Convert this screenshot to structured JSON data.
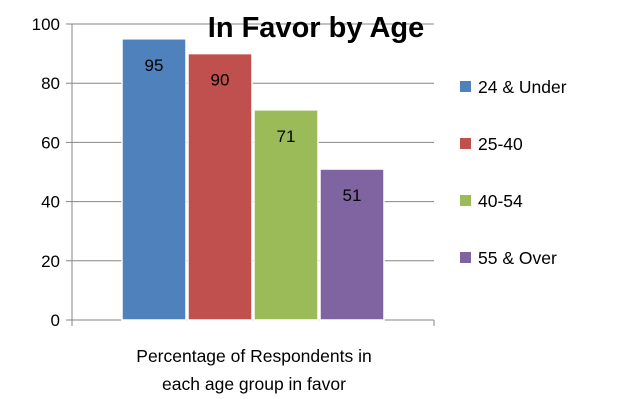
{
  "chart_data": {
    "type": "bar",
    "title": "In Favor by Age",
    "xlabel": [
      "Percentage of Respondents in",
      "each age group in favor"
    ],
    "ylabel": "",
    "ylim": [
      0,
      100
    ],
    "yticks": [
      0,
      20,
      40,
      60,
      80,
      100
    ],
    "grid": true,
    "legend_position": "right",
    "categories": [
      "Percentage of Respondents in each age group in favor"
    ],
    "series": [
      {
        "name": "24 & Under",
        "values": [
          95
        ],
        "color": "#4f81bd"
      },
      {
        "name": "25-40",
        "values": [
          90
        ],
        "color": "#c0504d"
      },
      {
        "name": "40-54",
        "values": [
          71
        ],
        "color": "#9bbb59"
      },
      {
        "name": "55 & Over",
        "values": [
          51
        ],
        "color": "#8064a2"
      }
    ]
  }
}
